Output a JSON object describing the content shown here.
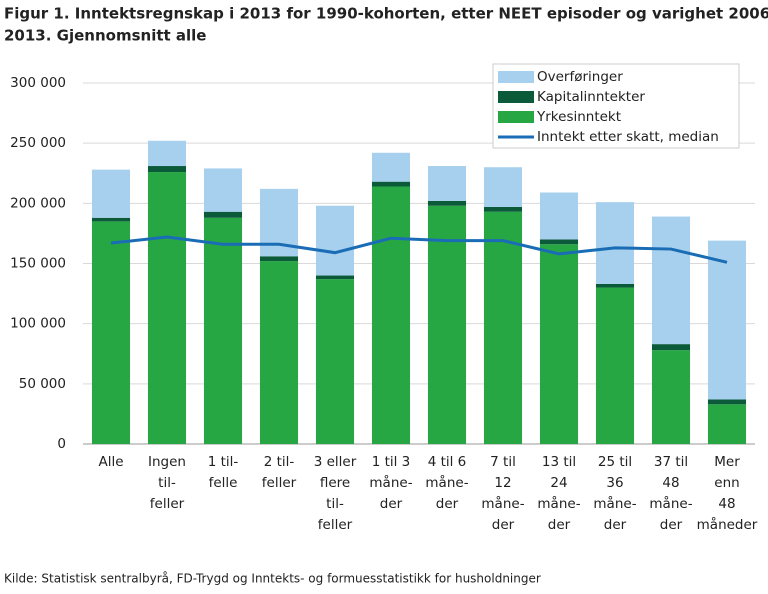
{
  "chart_data": {
    "type": "bar",
    "stacked": true,
    "title": [
      "Figur 1. Inntektsregnskap i 2013 for 1990-kohorten, etter NEET episoder og varighet 2006-",
      "2013. Gjennomsnitt alle"
    ],
    "source": "Kilde: Statistisk sentralbyrå, FD-Trygd og Inntekts- og formuesstatistikk for husholdninger",
    "categories": [
      [
        "Alle"
      ],
      [
        "Ingen",
        "til-",
        "feller"
      ],
      [
        "1 til-",
        "felle"
      ],
      [
        "2 til-",
        "feller"
      ],
      [
        "3 eller",
        "flere",
        "til-",
        "feller"
      ],
      [
        "1 til 3",
        "måne-",
        "der"
      ],
      [
        "4 til 6",
        "måne-",
        "der"
      ],
      [
        "7 til",
        "12",
        "måne-",
        "der"
      ],
      [
        "13 til",
        "24",
        "måne-",
        "der"
      ],
      [
        "25 til",
        "36",
        "måne-",
        "der"
      ],
      [
        "37 til",
        "48",
        "måne-",
        "der"
      ],
      [
        "Mer",
        "enn",
        "48",
        "måneder"
      ]
    ],
    "series": [
      {
        "name": "Yrkesinntekt",
        "type": "bar",
        "color": "#27a744",
        "values": [
          185000,
          226000,
          188000,
          152000,
          137000,
          214000,
          198000,
          193000,
          166000,
          130000,
          78000,
          33000
        ]
      },
      {
        "name": "Kapitalinntekter",
        "type": "bar",
        "color": "#0b5a3a",
        "values": [
          3000,
          5000,
          5000,
          4000,
          3000,
          4000,
          4000,
          4000,
          4000,
          3000,
          5000,
          4000
        ]
      },
      {
        "name": "Overføringer",
        "type": "bar",
        "color": "#a6d0ee",
        "values": [
          40000,
          21000,
          36000,
          56000,
          58000,
          24000,
          29000,
          33000,
          39000,
          68000,
          106000,
          132000
        ]
      },
      {
        "name": "Inntekt etter skatt, median",
        "type": "line",
        "color": "#1a6db5",
        "values": [
          167000,
          172000,
          166000,
          166000,
          159000,
          171000,
          169000,
          169000,
          158000,
          163000,
          162000,
          151000
        ]
      }
    ],
    "ylim": [
      0,
      300000
    ],
    "yticks": [
      0,
      {
        "value": 50000,
        "label": "50 000"
      },
      {
        "value": 100000,
        "label": "100 000"
      },
      {
        "value": 150000,
        "label": "150 000"
      },
      {
        "value": 200000,
        "label": "200 000"
      },
      {
        "value": 250000,
        "label": "250 000"
      },
      {
        "value": 300000,
        "label": "300 000"
      }
    ],
    "grid": true,
    "legend": "top-right"
  }
}
